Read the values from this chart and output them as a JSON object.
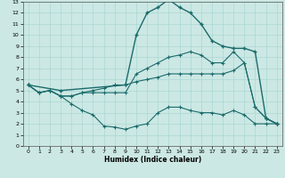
{
  "xlabel": "Humidex (Indice chaleur)",
  "background_color": "#cce8e4",
  "line_color": "#1a6b6b",
  "grid_color": "#aad8d4",
  "xlim": [
    -0.5,
    23.5
  ],
  "ylim": [
    0,
    13
  ],
  "xticks": [
    0,
    1,
    2,
    3,
    4,
    5,
    6,
    7,
    8,
    9,
    10,
    11,
    12,
    13,
    14,
    15,
    16,
    17,
    18,
    19,
    20,
    21,
    22,
    23
  ],
  "yticks": [
    0,
    1,
    2,
    3,
    4,
    5,
    6,
    7,
    8,
    9,
    10,
    11,
    12,
    13
  ],
  "curve_upper_x": [
    0,
    3,
    9,
    10,
    11,
    12,
    13,
    14,
    15,
    16,
    17,
    18,
    19,
    20,
    21,
    22,
    23
  ],
  "curve_upper_y": [
    5.5,
    5.0,
    5.5,
    10.0,
    12.0,
    12.5,
    13.2,
    12.5,
    12.0,
    11.0,
    9.5,
    9.0,
    8.8,
    8.8,
    8.5,
    2.5,
    2.0
  ],
  "curve_mid_upper_x": [
    0,
    1,
    2,
    3,
    4,
    5,
    6,
    7,
    8,
    9,
    10,
    11,
    12,
    13,
    14,
    15,
    16,
    17,
    18,
    19,
    20,
    21,
    22,
    23
  ],
  "curve_mid_upper_y": [
    5.5,
    4.8,
    5.0,
    4.5,
    4.5,
    4.8,
    4.8,
    4.8,
    4.8,
    4.8,
    6.5,
    7.0,
    7.5,
    8.0,
    8.2,
    8.5,
    8.2,
    7.5,
    7.5,
    8.5,
    7.5,
    3.5,
    2.5,
    2.0
  ],
  "curve_mid_lower_x": [
    0,
    1,
    2,
    3,
    4,
    5,
    6,
    7,
    8,
    9,
    10,
    11,
    12,
    13,
    14,
    15,
    16,
    17,
    18,
    19,
    20,
    21,
    22,
    23
  ],
  "curve_mid_lower_y": [
    5.5,
    4.8,
    5.0,
    4.5,
    4.5,
    4.8,
    5.0,
    5.2,
    5.5,
    5.5,
    5.8,
    6.0,
    6.2,
    6.5,
    6.5,
    6.5,
    6.5,
    6.5,
    6.5,
    6.8,
    7.5,
    3.5,
    2.5,
    2.0
  ],
  "curve_lower_x": [
    0,
    1,
    2,
    3,
    4,
    5,
    6,
    7,
    8,
    9,
    10,
    11,
    12,
    13,
    14,
    15,
    16,
    17,
    18,
    19,
    20,
    21,
    22,
    23
  ],
  "curve_lower_y": [
    5.5,
    4.8,
    5.0,
    4.5,
    3.8,
    3.2,
    2.8,
    1.8,
    1.7,
    1.5,
    1.8,
    2.0,
    3.0,
    3.5,
    3.5,
    3.2,
    3.0,
    3.0,
    2.8,
    3.2,
    2.8,
    2.0,
    2.0,
    2.0
  ]
}
